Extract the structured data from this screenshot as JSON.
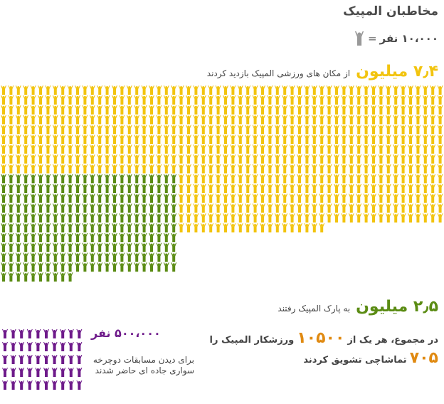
{
  "colors": {
    "visited": "#f2c40f",
    "park": "#5b8c14",
    "road": "#6e1a8a",
    "accent": "#e08a12",
    "legend_icon": "#999999"
  },
  "header": {
    "title": "مخاطبان المپیک"
  },
  "legend": {
    "eq": "=",
    "value": "۱۰،۰۰۰ نفر",
    "icon": "cheering-person-icon"
  },
  "stats": {
    "visited_value": "۷٫۴ میلیون",
    "visited_text": "از مکان های ورزشی المپیک بازدید کردند",
    "park_value": "۲٫۵ میلیون",
    "park_text": "به پارک المپیک رفتند",
    "total_prefix": "در مجموع، هر یک از",
    "total_athletes": "۱۰۵۰۰",
    "total_suffix": "ورزشکار المپیک را",
    "total_fans": "۷۰۵",
    "total_end": "تماشاچی تشویق کردند",
    "road_value": "۵۰۰،۰۰۰ نفر",
    "road_desc": "برای دیدن مسابقات دوچرخه سواری جاده ای حاضر شدند"
  },
  "chart_data": {
    "type": "pictogram",
    "unit": "۱۰،۰۰۰ نفر",
    "series": [
      {
        "name": "از مکان های ورزشی المپیک بازدید کردند",
        "value": 7400000,
        "icons": 740
      },
      {
        "name": "به پارک المپیک رفتند",
        "value": 2500000,
        "icons": 250
      },
      {
        "name": "برای دیدن مسابقات دوچرخه سواری جاده ای حاضر شدند",
        "value": 500000,
        "icons": 50
      }
    ]
  }
}
